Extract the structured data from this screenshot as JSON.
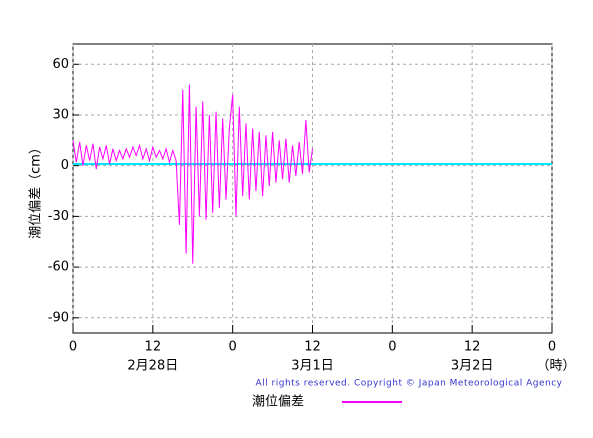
{
  "chart_data": {
    "type": "line",
    "y_label": "潮位偏差（cm）",
    "copyright": "All rights reserved. Copyright © Japan Meteorological Agency",
    "xlim": [
      0,
      72
    ],
    "ylim": [
      -99,
      72
    ],
    "xticks": [
      0,
      12,
      {
        "value": 24,
        "label": "0"
      },
      {
        "value": 36,
        "label": "12"
      },
      {
        "value": 48,
        "label": "0"
      },
      {
        "value": 60,
        "label": "12"
      },
      {
        "value": 72,
        "label": "0"
      }
    ],
    "yticks": [
      60,
      30,
      0,
      -30,
      -60,
      -90
    ],
    "date_labels": [
      {
        "value": 12,
        "label": "2月28日"
      },
      {
        "value": 36,
        "label": "3月1日"
      },
      {
        "value": 60,
        "label": "3月2日"
      }
    ],
    "x_unit": "（時）",
    "grid": true,
    "series": [
      {
        "name": "潮位偏差",
        "color": "#ff00ff",
        "x": [
          0,
          0.5,
          1,
          1.5,
          2,
          2.5,
          3,
          3.5,
          4,
          4.5,
          5,
          5.5,
          6,
          6.5,
          7,
          7.5,
          8,
          8.5,
          9,
          9.5,
          10,
          10.5,
          11,
          11.5,
          12,
          12.5,
          13,
          13.5,
          14,
          14.5,
          15,
          15.5,
          16,
          16.5,
          17,
          17.5,
          18,
          18.5,
          19,
          19.5,
          20,
          20.5,
          21,
          21.5,
          22,
          22.5,
          23,
          23.5,
          24,
          24.5,
          25,
          25.5,
          26,
          26.5,
          27,
          27.5,
          28,
          28.5,
          29,
          29.5,
          30,
          30.5,
          31,
          31.5,
          32,
          32.5,
          33,
          33.5,
          34,
          34.5,
          35,
          35.5,
          36
        ],
        "values": [
          15,
          2,
          14,
          0,
          12,
          3,
          13,
          -2,
          11,
          4,
          12,
          1,
          10,
          3,
          9,
          4,
          10,
          5,
          11,
          6,
          12,
          4,
          10,
          3,
          11,
          5,
          9,
          4,
          10,
          2,
          9,
          3,
          -35,
          45,
          -52,
          48,
          -58,
          35,
          -30,
          38,
          -32,
          30,
          -28,
          32,
          -25,
          28,
          -20,
          22,
          42,
          -30,
          35,
          -18,
          25,
          -20,
          22,
          -15,
          20,
          -18,
          18,
          -12,
          20,
          -10,
          15,
          -8,
          16,
          -10,
          12,
          -6,
          14,
          -5,
          27,
          -4,
          10
        ]
      },
      {
        "color": "#00e5ff",
        "x": [
          0,
          72
        ],
        "values": [
          1,
          1
        ]
      }
    ]
  }
}
